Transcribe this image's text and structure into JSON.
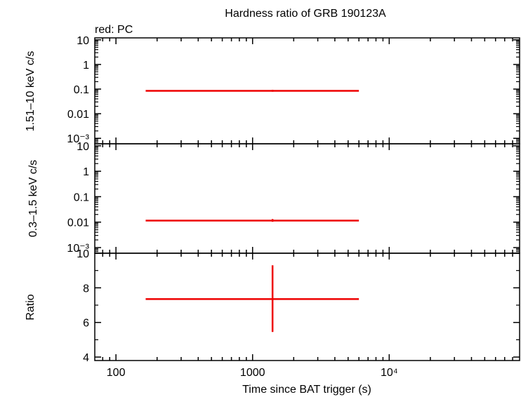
{
  "chart_data": {
    "type": "scatter",
    "title": "Hardness ratio of GRB 190123A",
    "subtitle": "red: PC",
    "xlabel": "Time since BAT trigger (s)",
    "xscale": "log",
    "xlim": [
      70,
      90000
    ],
    "x_tick_labels": [
      "100",
      "1000",
      "10⁴"
    ],
    "series_color": "#ee0000",
    "panels": [
      {
        "name": "hard-band",
        "ylabel": "1.51–10 keV c/s",
        "yscale": "log",
        "ylim": [
          0.0006,
          12
        ],
        "y_tick_labels": [
          "10",
          "1",
          "0.1",
          "0.01",
          "10⁻³"
        ],
        "points": [
          {
            "x": 1400,
            "xlo": 165,
            "xhi": 6000,
            "y": 0.085,
            "ylo": 0.078,
            "yhi": 0.093
          }
        ]
      },
      {
        "name": "soft-band",
        "ylabel": "0.3–1.5 keV c/s",
        "yscale": "log",
        "ylim": [
          0.0006,
          12
        ],
        "y_tick_labels": [
          "10",
          "1",
          "0.1",
          "0.01",
          "10⁻³"
        ],
        "points": [
          {
            "x": 1400,
            "xlo": 165,
            "xhi": 6000,
            "y": 0.0115,
            "ylo": 0.0103,
            "yhi": 0.0132
          }
        ]
      },
      {
        "name": "ratio",
        "ylabel": "Ratio",
        "yscale": "linear",
        "ylim": [
          3.8,
          10
        ],
        "y_tick_labels": [
          "10",
          "8",
          "6",
          "4"
        ],
        "points": [
          {
            "x": 1400,
            "xlo": 165,
            "xhi": 6000,
            "y": 7.35,
            "ylo": 5.45,
            "yhi": 9.3
          }
        ]
      }
    ]
  }
}
